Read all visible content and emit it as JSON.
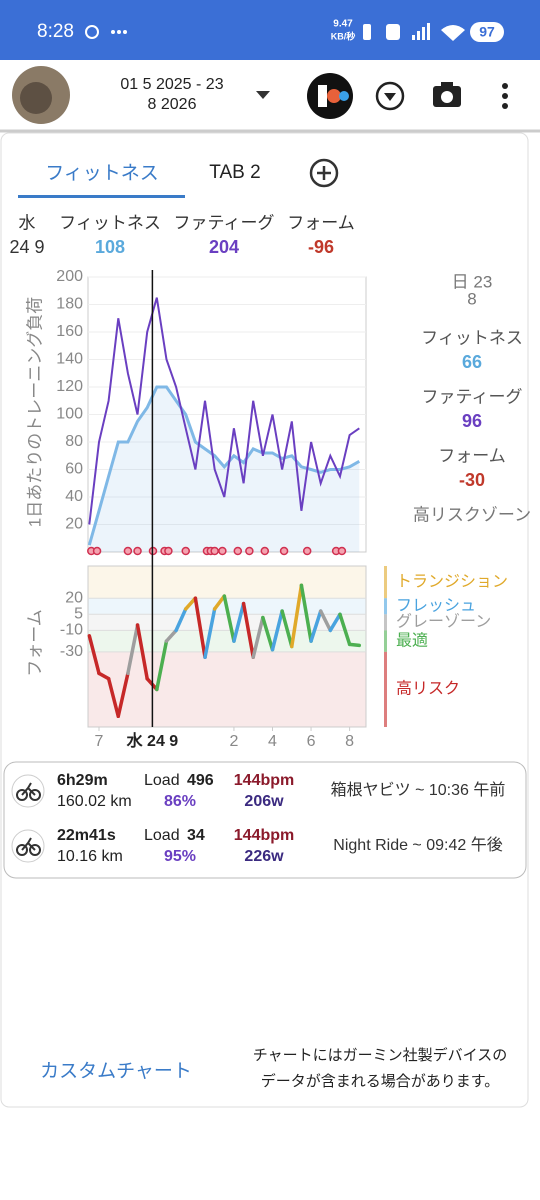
{
  "status_bar": {
    "time": "8:28",
    "speed_value": "9.47",
    "speed_unit": "KB/秒",
    "battery": "97"
  },
  "header": {
    "date_range_line1": "01 5 2025 - 23",
    "date_range_line2": "8 2026"
  },
  "tabs": [
    "フィットネス",
    "TAB 2"
  ],
  "summary": {
    "day": "水",
    "date": "24 9",
    "fitness_label": "フィットネス",
    "fitness": "108",
    "fatigue_label": "ファティーグ",
    "fatigue": "204",
    "form_label": "フォーム",
    "form": "-96"
  },
  "side_panel": {
    "date_line1": "日 23",
    "date_line2": "8",
    "fitness_label": "フィットネス",
    "fitness": "66",
    "fatigue_label": "ファティーグ",
    "fatigue": "96",
    "form_label": "フォーム",
    "form": "-30",
    "zone": "高リスクゾーン"
  },
  "timeline": {
    "x": [
      6.5,
      7,
      7.5,
      8,
      8.5,
      9,
      9.5,
      10,
      10.5,
      11,
      11.5,
      12,
      12.5,
      13,
      13.5,
      14,
      14.5,
      15,
      15.5,
      16,
      16.5,
      17,
      17.5,
      18,
      18.5,
      19,
      19.5,
      20,
      20.5
    ],
    "xlim": [
      6.43,
      20.85
    ],
    "xticks": [
      7,
      {
        "value": 14,
        "label": "2"
      },
      {
        "value": 16,
        "label": "4"
      },
      {
        "value": 18,
        "label": "6"
      },
      {
        "value": 20,
        "label": "8"
      }
    ],
    "cursor": {
      "value": 9.77,
      "label": "水 24 9"
    }
  },
  "load_chart": {
    "type": "line",
    "y_label": "1日あたりのトレーニング負荷",
    "ylim": [
      0,
      200
    ],
    "yticks": [
      20,
      40,
      60,
      80,
      100,
      120,
      140,
      160,
      180,
      200
    ],
    "grid": true,
    "series": [
      {
        "color": "#7fb8e6",
        "area": true,
        "values": [
          5,
          30,
          55,
          80,
          80,
          95,
          105,
          120,
          120,
          110,
          100,
          80,
          75,
          70,
          62,
          70,
          65,
          75,
          72,
          72,
          68,
          70,
          62,
          60,
          58,
          60,
          60,
          62,
          66
        ]
      },
      {
        "color": "#6a3fc1",
        "area": false,
        "values": [
          20,
          80,
          110,
          170,
          130,
          100,
          160,
          185,
          140,
          120,
          90,
          60,
          110,
          60,
          40,
          90,
          50,
          110,
          70,
          100,
          60,
          95,
          30,
          80,
          50,
          70,
          55,
          85,
          90
        ]
      }
    ],
    "events": [
      6.6,
      6.9,
      8.5,
      9.0,
      9.8,
      10.4,
      10.6,
      11.5,
      12.6,
      12.8,
      13.0,
      13.4,
      14.2,
      14.8,
      15.6,
      16.6,
      17.8,
      19.3,
      19.6
    ]
  },
  "form_chart": {
    "type": "line",
    "y_label": "フォーム",
    "ylim": [
      -100,
      50
    ],
    "yticks": [
      20,
      5,
      -10,
      -30
    ],
    "zones": [
      {
        "name": "トランジション",
        "color": "#e0a92a",
        "range": [
          20,
          50
        ]
      },
      {
        "name": "フレッシュ",
        "color": "#4aa3df",
        "range": [
          5,
          20
        ]
      },
      {
        "name": "グレーゾーン",
        "color": "#9e9e9e",
        "range": [
          -10,
          5
        ]
      },
      {
        "name": "最適",
        "color": "#4caf50",
        "range": [
          -30,
          -10
        ]
      },
      {
        "name": "高リスク",
        "color": "#c62828",
        "range": [
          -100,
          -30
        ]
      }
    ],
    "values": [
      -15,
      -50,
      -55,
      -90,
      -50,
      -5,
      -55,
      -65,
      -20,
      -10,
      10,
      20,
      -35,
      10,
      22,
      -20,
      15,
      -35,
      2,
      -28,
      8,
      -25,
      32,
      -20,
      8,
      -10,
      5,
      -23,
      -24
    ]
  },
  "activities": [
    {
      "duration": "6h29m",
      "distance": "160.02 km",
      "load_label": "Load",
      "load": "496",
      "percent": "86%",
      "hr": "144bpm",
      "power": "206w",
      "title": "箱根ヤビツ ~ 10:36 午前"
    },
    {
      "duration": "22m41s",
      "distance": "10.16 km",
      "load_label": "Load",
      "load": "34",
      "percent": "95%",
      "hr": "144bpm",
      "power": "226w",
      "title": "Night Ride ~ 09:42 午後"
    }
  ],
  "footer": {
    "button": "カスタムチャート",
    "note_line1": "チャートにはガーミン社製デバイスの",
    "note_line2": "データが含まれる場合があります。"
  }
}
